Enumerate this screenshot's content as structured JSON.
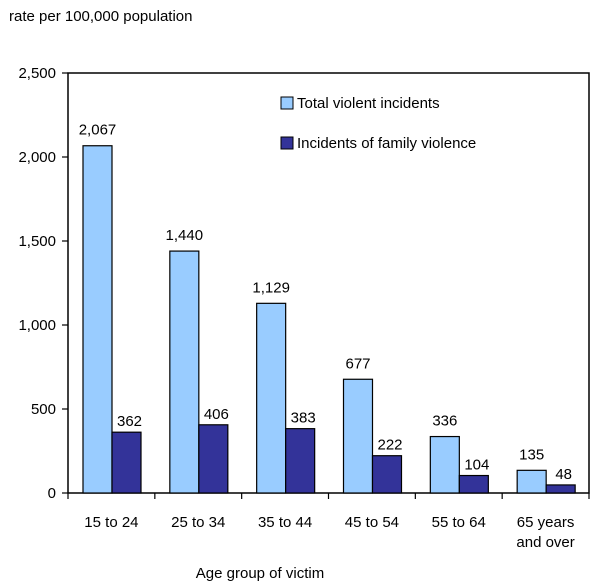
{
  "chart_data": {
    "type": "bar",
    "title": "",
    "ylabel": "rate per 100,000 population",
    "xlabel": "Age group of victim",
    "categories": [
      [
        "15 to 24"
      ],
      [
        "25 to 34"
      ],
      [
        "35 to 44"
      ],
      [
        "45 to 54"
      ],
      [
        "55 to 64"
      ],
      [
        "65 years",
        "and over"
      ]
    ],
    "series": [
      {
        "name": "Total violent incidents",
        "values": [
          2067,
          1440,
          1129,
          677,
          336,
          135
        ],
        "labels": [
          "2,067",
          "1,440",
          "1,129",
          "677",
          "336",
          "135"
        ],
        "color": "#99ccff"
      },
      {
        "name": "Incidents of family violence",
        "values": [
          362,
          406,
          383,
          222,
          104,
          48
        ],
        "labels": [
          "362",
          "406",
          "383",
          "222",
          "104",
          "48"
        ],
        "color": "#333399"
      }
    ],
    "ylim": [
      0,
      2500
    ],
    "yticks": [
      0,
      500,
      1000,
      1500,
      2000,
      2500
    ],
    "ytick_labels": [
      "0",
      "500",
      "1,000",
      "1,500",
      "2,000",
      "2,500"
    ],
    "legend": "top-right",
    "grid": false
  }
}
